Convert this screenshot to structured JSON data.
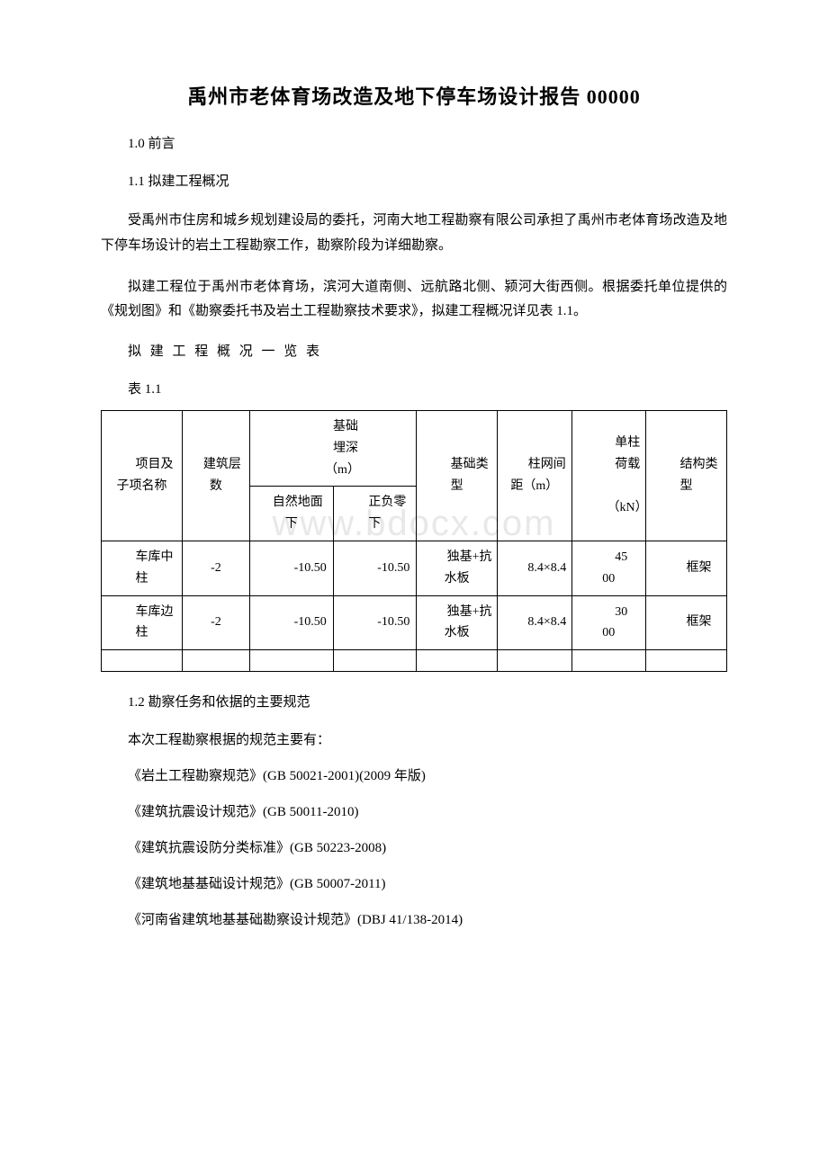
{
  "watermark": "www.bdocx.com",
  "title": "禹州市老体育场改造及地下停车场设计报告 00000",
  "sections": {
    "s1_0": "1.0 前言",
    "s1_1": "1.1 拟建工程概况",
    "para1": "受禹州市住房和城乡规划建设局的委托，河南大地工程勘察有限公司承担了禹州市老体育场改造及地下停车场设计的岩土工程勘察工作，勘察阶段为详细勘察。",
    "para2": "拟建工程位于禹州市老体育场，滨河大道南侧、远航路北侧、颍河大街西侧。根据委托单位提供的《规划图》和《勘察委托书及岩土工程勘察技术要求》，拟建工程概况详见表 1.1。",
    "table_title": "拟 建 工 程 概 况 一 览 表",
    "table_num": "表 1.1",
    "s1_2": "1.2 勘察任务和依据的主要规范",
    "para3": "本次工程勘察根据的规范主要有：",
    "ref1": "《岩土工程勘察规范》(GB 50021-2001)(2009 年版)",
    "ref2": "《建筑抗震设计规范》(GB 50011-2010)",
    "ref3": "《建筑抗震设防分类标准》(GB 50223-2008)",
    "ref4": "《建筑地基基础设计规范》(GB 50007-2011)",
    "ref5": "《河南省建筑地基基础勘察设计规范》(DBJ 41/138-2014)"
  },
  "table": {
    "headers": {
      "project_name": "项目及子项名称",
      "floors": "建筑层数",
      "depth_main": "基础",
      "depth_main2": "埋深",
      "depth_unit": "（m）",
      "depth_sub1": "自然地面下",
      "depth_sub2": "正负零下",
      "foundation": "基础类型",
      "span": "柱网间距（m）",
      "load": "单柱荷载",
      "load_unit": "（kN）",
      "structure": "结构类型"
    },
    "rows": [
      {
        "name": "车库中柱",
        "floors": "-2",
        "depth1": "-10.50",
        "depth2": "-10.50",
        "foundation": "独基+抗水板",
        "span": "8.4×8.4",
        "load": "4500",
        "structure": "框架"
      },
      {
        "name": "车库边柱",
        "floors": "-2",
        "depth1": "-10.50",
        "depth2": "-10.50",
        "foundation": "独基+抗水板",
        "span": "8.4×8.4",
        "load": "3000",
        "structure": "框架"
      }
    ]
  }
}
